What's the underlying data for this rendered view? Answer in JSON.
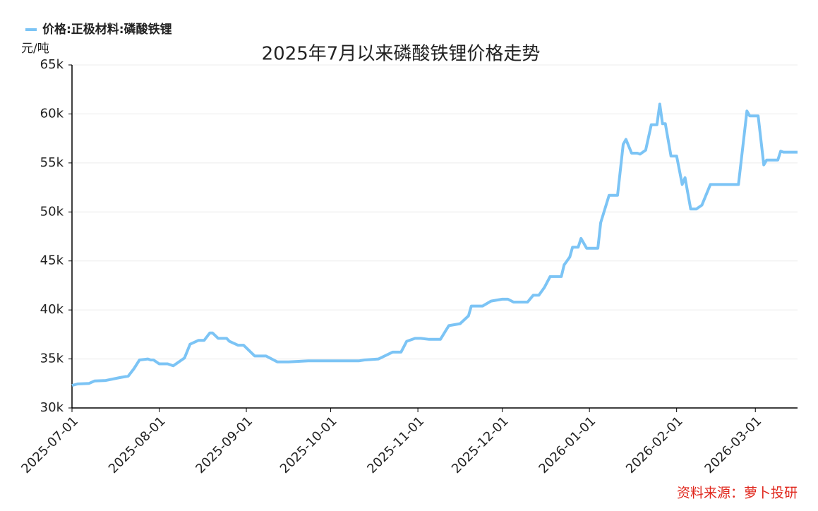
{
  "chart_data": {
    "type": "line",
    "title": "2025年7月以来磷酸铁锂价格走势",
    "y_label": "元/吨",
    "source": "资料来源：萝卜投研",
    "x": [
      "2025-07-01",
      "2025-07-03",
      "2025-07-07",
      "2025-07-09",
      "2025-07-13",
      "2025-07-18",
      "2025-07-21",
      "2025-07-23",
      "2025-07-25",
      "2025-07-28",
      "2025-07-29",
      "2025-07-30",
      "2025-08-01",
      "2025-08-04",
      "2025-08-06",
      "2025-08-10",
      "2025-08-12",
      "2025-08-15",
      "2025-08-17",
      "2025-08-19",
      "2025-08-20",
      "2025-08-22",
      "2025-08-25",
      "2025-08-26",
      "2025-08-29",
      "2025-08-31",
      "2025-09-04",
      "2025-09-08",
      "2025-09-12",
      "2025-09-16",
      "2025-09-23",
      "2025-10-01",
      "2025-10-11",
      "2025-10-13",
      "2025-10-18",
      "2025-10-23",
      "2025-10-26",
      "2025-10-28",
      "2025-10-31",
      "2025-11-02",
      "2025-11-05",
      "2025-11-09",
      "2025-11-12",
      "2025-11-16",
      "2025-11-19",
      "2025-11-20",
      "2025-11-24",
      "2025-11-27",
      "2025-12-01",
      "2025-12-03",
      "2025-12-05",
      "2025-12-10",
      "2025-12-12",
      "2025-12-14",
      "2025-12-16",
      "2025-12-18",
      "2025-12-22",
      "2025-12-23",
      "2025-12-25",
      "2025-12-26",
      "2025-12-28",
      "2025-12-29",
      "2025-12-31",
      "2026-01-04",
      "2026-01-05",
      "2026-01-08",
      "2026-01-11",
      "2026-01-13",
      "2026-01-14",
      "2026-01-16",
      "2026-01-18",
      "2026-01-19",
      "2026-01-21",
      "2026-01-23",
      "2026-01-25",
      "2026-01-26",
      "2026-01-27",
      "2026-01-28",
      "2026-01-30",
      "2026-02-01",
      "2026-02-03",
      "2026-02-04",
      "2026-02-06",
      "2026-02-08",
      "2026-02-10",
      "2026-02-13",
      "2026-02-16",
      "2026-02-23",
      "2026-02-26",
      "2026-02-27",
      "2026-03-02",
      "2026-03-04",
      "2026-03-05",
      "2026-03-09",
      "2026-03-10",
      "2026-03-11",
      "2026-03-16"
    ],
    "series": [
      {
        "name": "价格:正极材料:磷酸铁锂",
        "color": "#7cc4f5",
        "values": [
          32300,
          32450,
          32500,
          32750,
          32800,
          33100,
          33250,
          34000,
          34900,
          35000,
          34900,
          34900,
          34500,
          34500,
          34300,
          35100,
          36500,
          36900,
          36900,
          37650,
          37650,
          37100,
          37100,
          36800,
          36400,
          36400,
          35300,
          35300,
          34700,
          34700,
          34800,
          34800,
          34800,
          34900,
          35000,
          35700,
          35700,
          36800,
          37100,
          37100,
          37000,
          37000,
          38400,
          38600,
          39400,
          40400,
          40400,
          40900,
          41100,
          41100,
          40800,
          40800,
          41500,
          41500,
          42300,
          43400,
          43400,
          44600,
          45400,
          46400,
          46400,
          47300,
          46300,
          46300,
          48900,
          51700,
          51700,
          56900,
          57400,
          56000,
          56000,
          55900,
          56300,
          58900,
          58900,
          61000,
          59000,
          59000,
          55700,
          55700,
          52800,
          53500,
          50300,
          50300,
          50700,
          52800,
          52800,
          52800,
          60300,
          59800,
          59800,
          54800,
          55300,
          55300,
          56200,
          56100,
          56100
        ]
      }
    ],
    "xlim": [
      "2025-07-01",
      "2026-03-16"
    ],
    "xticks": [
      "2025-07-01",
      "2025-08-01",
      "2025-09-01",
      "2025-10-01",
      "2025-11-01",
      "2025-12-01",
      "2026-01-01",
      "2026-02-01",
      "2026-03-01"
    ],
    "ylim": [
      30000,
      65000
    ],
    "yticks": [
      {
        "value": 30000,
        "label": "30k"
      },
      {
        "value": 35000,
        "label": "35k"
      },
      {
        "value": 40000,
        "label": "40k"
      },
      {
        "value": 45000,
        "label": "45k"
      },
      {
        "value": 50000,
        "label": "50k"
      },
      {
        "value": 55000,
        "label": "55k"
      },
      {
        "value": 60000,
        "label": "60k"
      },
      {
        "value": 65000,
        "label": "65k"
      }
    ],
    "grid": true,
    "legend": "top-left"
  }
}
